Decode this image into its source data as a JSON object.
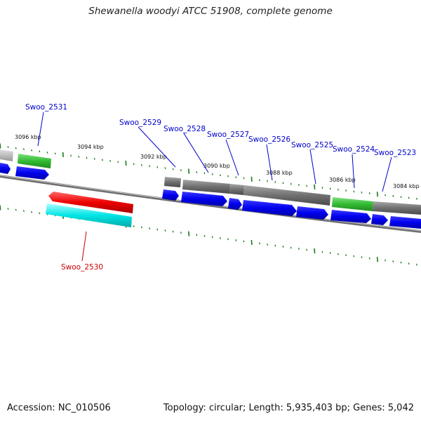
{
  "title": "Shewanella woodyi ATCC 51908, complete genome",
  "footer": {
    "accession": "Accession: NC_010506",
    "summary": "Topology: circular; Length: 5,935,403 bp; Genes: 5,042"
  },
  "colors": {
    "forward_cds": "#0000ee",
    "gray_feature": "#707070",
    "green_feature": "#33bb33",
    "red_feature": "#ee0000",
    "cyan_feature": "#00e5e5",
    "backbone": "#8a8a8a",
    "tick": "#1a7a1a",
    "label_blue": "#0000cc",
    "label_red": "#cc0000"
  },
  "tick_labels": [
    "3096 kbp",
    "3094 kbp",
    "3092 kbp",
    "3090 kbp",
    "3088 kbp",
    "3086 kbp",
    "3084 kbp"
  ],
  "gene_labels": [
    "Swoo_2531",
    "Swoo_2529",
    "Swoo_2528",
    "Swoo_2527",
    "Swoo_2526",
    "Swoo_2525",
    "Swoo_2524",
    "Swoo_2523",
    "Swoo_2530"
  ]
}
